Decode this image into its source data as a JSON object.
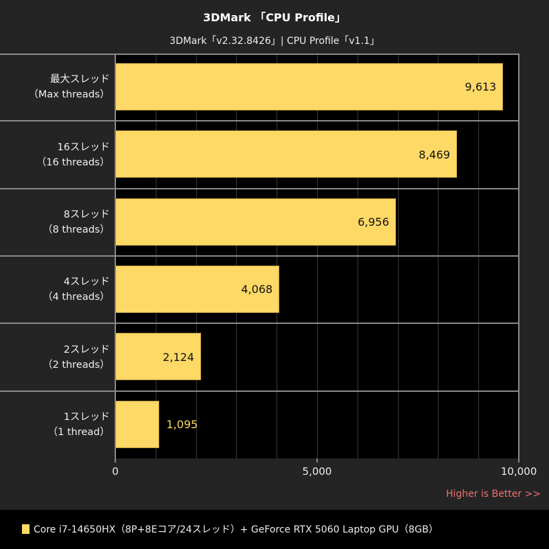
{
  "chart_data": {
    "type": "bar",
    "orientation": "horizontal",
    "title": "3DMark 「CPU Profile」",
    "subtitle": "3DMark「v2.32.8426」| CPU Profile「v1.1」",
    "categories": [
      "最大スレッド（Max threads）",
      "16スレッド（16 threads）",
      "8スレッド（8 threads）",
      "4スレッド（4 threads）",
      "2スレッド（2 threads）",
      "1スレッド（1 thread）"
    ],
    "series": [
      {
        "name": "Core i7-14650HX（8P+8Eコア/24スレッド）+ GeForce RTX 5060 Laptop GPU（8GB）",
        "color": "#ffd966",
        "values": [
          9613,
          8469,
          6956,
          4068,
          2124,
          1095
        ]
      }
    ],
    "xlabel": "",
    "ylabel": "",
    "xlim": [
      0,
      10000
    ],
    "xticks": [
      "0",
      "5,000",
      "10,000"
    ],
    "grid": true,
    "legend_position": "bottom",
    "annotation": "Higher is Better >>"
  },
  "header": {
    "title": "3DMark 「CPU Profile」",
    "subtitle": "3DMark「v2.32.8426」| CPU Profile「v1.1」"
  },
  "rows": [
    {
      "label_jp": "最大スレッド",
      "label_en": "（Max threads）",
      "value": 9613,
      "value_label": "9,613"
    },
    {
      "label_jp": "16スレッド",
      "label_en": "（16 threads）",
      "value": 8469,
      "value_label": "8,469"
    },
    {
      "label_jp": "8スレッド",
      "label_en": "（8 threads）",
      "value": 6956,
      "value_label": "6,956"
    },
    {
      "label_jp": "4スレッド",
      "label_en": "（4 threads）",
      "value": 4068,
      "value_label": "4,068"
    },
    {
      "label_jp": "2スレッド",
      "label_en": "（2 threads）",
      "value": 2124,
      "value_label": "2,124"
    },
    {
      "label_jp": "1スレッド",
      "label_en": "（1 thread）",
      "value": 1095,
      "value_label": "1,095"
    }
  ],
  "axis": {
    "ticks": [
      {
        "value": 0,
        "label": "0"
      },
      {
        "value": 5000,
        "label": "5,000"
      },
      {
        "value": 10000,
        "label": "10,000"
      }
    ],
    "max": 10000
  },
  "annotation": "Higher is Better >>",
  "legend": {
    "label": "Core i7-14650HX（8P+8Eコア/24スレッド）+ GeForce RTX 5060 Laptop GPU（8GB）",
    "color": "#ffd966"
  }
}
